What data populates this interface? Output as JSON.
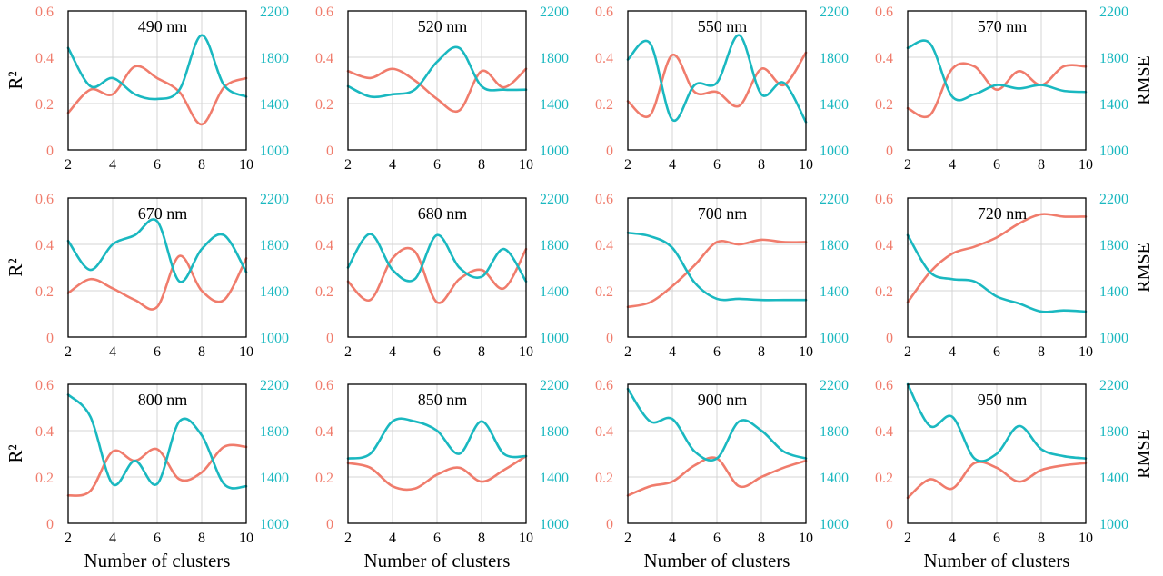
{
  "figure": {
    "y_left_label": "R²",
    "y_right_label": "RMSE",
    "x_label": "Number of clusters"
  },
  "colors": {
    "r2": "#f07c6c",
    "rmse": "#1ab8c0",
    "grid": "#d4d4d4",
    "frame": "#000000"
  },
  "chart_data": [
    {
      "type": "line",
      "title": "490 nm",
      "x": [
        2,
        3,
        4,
        5,
        6,
        7,
        8,
        9,
        10
      ],
      "xlim": [
        2,
        10
      ],
      "ylim": [
        0,
        0.6
      ],
      "ylim_right": [
        1000,
        2200
      ],
      "series": [
        {
          "axis": "left",
          "values": [
            0.16,
            0.26,
            0.24,
            0.36,
            0.31,
            0.25,
            0.11,
            0.27,
            0.31
          ]
        },
        {
          "axis": "right",
          "values": [
            1880,
            1550,
            1620,
            1480,
            1440,
            1520,
            1990,
            1560,
            1460
          ]
        }
      ]
    },
    {
      "type": "line",
      "title": "520 nm",
      "x": [
        2,
        3,
        4,
        5,
        6,
        7,
        8,
        9,
        10
      ],
      "xlim": [
        2,
        10
      ],
      "ylim": [
        0,
        0.6
      ],
      "ylim_right": [
        1000,
        2200
      ],
      "series": [
        {
          "axis": "left",
          "values": [
            0.34,
            0.31,
            0.35,
            0.3,
            0.22,
            0.17,
            0.34,
            0.27,
            0.35
          ]
        },
        {
          "axis": "right",
          "values": [
            1550,
            1460,
            1480,
            1520,
            1760,
            1880,
            1550,
            1520,
            1520
          ]
        }
      ]
    },
    {
      "type": "line",
      "title": "550 nm",
      "x": [
        2,
        3,
        4,
        5,
        6,
        7,
        8,
        9,
        10
      ],
      "xlim": [
        2,
        10
      ],
      "ylim": [
        0,
        0.6
      ],
      "ylim_right": [
        1000,
        2200
      ],
      "series": [
        {
          "axis": "left",
          "values": [
            0.21,
            0.15,
            0.41,
            0.25,
            0.25,
            0.19,
            0.35,
            0.28,
            0.42
          ]
        },
        {
          "axis": "right",
          "values": [
            1780,
            1920,
            1260,
            1560,
            1580,
            1990,
            1480,
            1580,
            1240
          ]
        }
      ]
    },
    {
      "type": "line",
      "title": "570 nm",
      "x": [
        2,
        3,
        4,
        5,
        6,
        7,
        8,
        9,
        10
      ],
      "xlim": [
        2,
        10
      ],
      "ylim": [
        0,
        0.6
      ],
      "ylim_right": [
        1000,
        2200
      ],
      "series": [
        {
          "axis": "left",
          "values": [
            0.18,
            0.15,
            0.35,
            0.36,
            0.26,
            0.34,
            0.28,
            0.36,
            0.36
          ]
        },
        {
          "axis": "right",
          "values": [
            1880,
            1920,
            1460,
            1480,
            1560,
            1530,
            1560,
            1510,
            1500
          ]
        }
      ]
    },
    {
      "type": "line",
      "title": "670 nm",
      "x": [
        2,
        3,
        4,
        5,
        6,
        7,
        8,
        9,
        10
      ],
      "xlim": [
        2,
        10
      ],
      "ylim": [
        0,
        0.6
      ],
      "ylim_right": [
        1000,
        2200
      ],
      "series": [
        {
          "axis": "left",
          "values": [
            0.19,
            0.25,
            0.21,
            0.16,
            0.13,
            0.35,
            0.2,
            0.16,
            0.34
          ]
        },
        {
          "axis": "right",
          "values": [
            1830,
            1580,
            1800,
            1880,
            2000,
            1480,
            1760,
            1880,
            1560
          ]
        }
      ]
    },
    {
      "type": "line",
      "title": "680 nm",
      "x": [
        2,
        3,
        4,
        5,
        6,
        7,
        8,
        9,
        10
      ],
      "xlim": [
        2,
        10
      ],
      "ylim": [
        0,
        0.6
      ],
      "ylim_right": [
        1000,
        2200
      ],
      "series": [
        {
          "axis": "left",
          "values": [
            0.24,
            0.16,
            0.34,
            0.37,
            0.15,
            0.25,
            0.29,
            0.21,
            0.38
          ]
        },
        {
          "axis": "right",
          "values": [
            1600,
            1890,
            1580,
            1500,
            1880,
            1600,
            1520,
            1760,
            1480
          ]
        }
      ]
    },
    {
      "type": "line",
      "title": "700 nm",
      "x": [
        2,
        3,
        4,
        5,
        6,
        7,
        8,
        9,
        10
      ],
      "xlim": [
        2,
        10
      ],
      "ylim": [
        0,
        0.6
      ],
      "ylim_right": [
        1000,
        2200
      ],
      "series": [
        {
          "axis": "left",
          "values": [
            0.13,
            0.15,
            0.22,
            0.31,
            0.41,
            0.4,
            0.42,
            0.41,
            0.41
          ]
        },
        {
          "axis": "right",
          "values": [
            1900,
            1870,
            1770,
            1470,
            1330,
            1330,
            1320,
            1320,
            1320
          ]
        }
      ]
    },
    {
      "type": "line",
      "title": "720 nm",
      "x": [
        2,
        3,
        4,
        5,
        6,
        7,
        8,
        9,
        10
      ],
      "xlim": [
        2,
        10
      ],
      "ylim": [
        0,
        0.6
      ],
      "ylim_right": [
        1000,
        2200
      ],
      "series": [
        {
          "axis": "left",
          "values": [
            0.15,
            0.28,
            0.36,
            0.39,
            0.43,
            0.49,
            0.53,
            0.52,
            0.52
          ]
        },
        {
          "axis": "right",
          "values": [
            1880,
            1560,
            1500,
            1480,
            1350,
            1290,
            1220,
            1230,
            1220
          ]
        }
      ]
    },
    {
      "type": "line",
      "title": "800 nm",
      "x": [
        2,
        3,
        4,
        5,
        6,
        7,
        8,
        9,
        10
      ],
      "xlim": [
        2,
        10
      ],
      "ylim": [
        0,
        0.6
      ],
      "ylim_right": [
        1000,
        2200
      ],
      "series": [
        {
          "axis": "left",
          "values": [
            0.12,
            0.14,
            0.31,
            0.27,
            0.32,
            0.19,
            0.22,
            0.33,
            0.33
          ]
        },
        {
          "axis": "right",
          "values": [
            2110,
            1920,
            1340,
            1540,
            1340,
            1880,
            1760,
            1340,
            1320
          ]
        }
      ]
    },
    {
      "type": "line",
      "title": "850 nm",
      "x": [
        2,
        3,
        4,
        5,
        6,
        7,
        8,
        9,
        10
      ],
      "xlim": [
        2,
        10
      ],
      "ylim": [
        0,
        0.6
      ],
      "ylim_right": [
        1000,
        2200
      ],
      "series": [
        {
          "axis": "left",
          "values": [
            0.26,
            0.24,
            0.16,
            0.15,
            0.21,
            0.24,
            0.18,
            0.23,
            0.29
          ]
        },
        {
          "axis": "right",
          "values": [
            1560,
            1600,
            1880,
            1880,
            1800,
            1600,
            1880,
            1600,
            1580
          ]
        }
      ]
    },
    {
      "type": "line",
      "title": "900 nm",
      "x": [
        2,
        3,
        4,
        5,
        6,
        7,
        8,
        9,
        10
      ],
      "xlim": [
        2,
        10
      ],
      "ylim": [
        0,
        0.6
      ],
      "ylim_right": [
        1000,
        2200
      ],
      "series": [
        {
          "axis": "left",
          "values": [
            0.12,
            0.16,
            0.18,
            0.25,
            0.28,
            0.16,
            0.2,
            0.24,
            0.27
          ]
        },
        {
          "axis": "right",
          "values": [
            2160,
            1880,
            1900,
            1620,
            1560,
            1880,
            1800,
            1620,
            1560
          ]
        }
      ]
    },
    {
      "type": "line",
      "title": "950 nm",
      "x": [
        2,
        3,
        4,
        5,
        6,
        7,
        8,
        9,
        10
      ],
      "xlim": [
        2,
        10
      ],
      "ylim": [
        0,
        0.6
      ],
      "ylim_right": [
        1000,
        2200
      ],
      "series": [
        {
          "axis": "left",
          "values": [
            0.11,
            0.19,
            0.15,
            0.26,
            0.24,
            0.18,
            0.23,
            0.25,
            0.26
          ]
        },
        {
          "axis": "right",
          "values": [
            2200,
            1840,
            1920,
            1560,
            1600,
            1840,
            1640,
            1580,
            1560
          ]
        }
      ]
    }
  ]
}
